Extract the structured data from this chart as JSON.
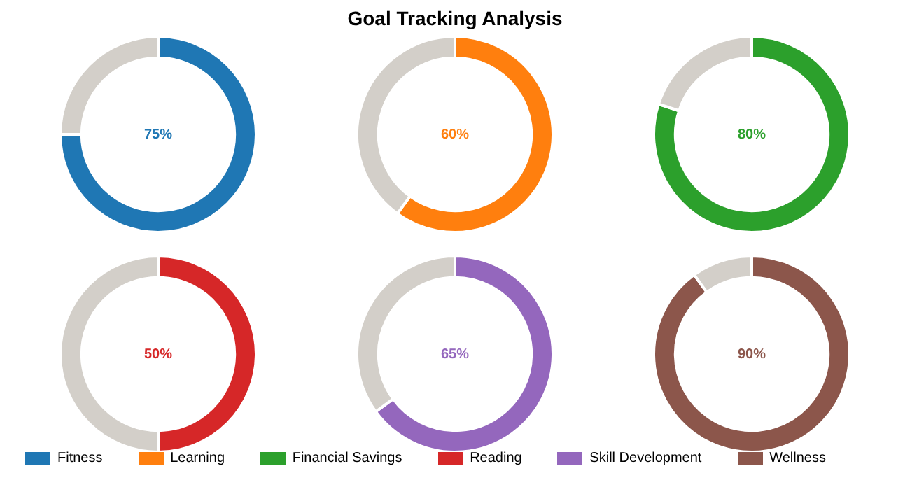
{
  "chart_data": [
    {
      "type": "donut",
      "categories": [
        "Fitness",
        null
      ],
      "values": [
        75,
        25
      ],
      "colors": [
        "#1f77b4",
        "#d3cfc9"
      ],
      "annotations": [
        "75%"
      ],
      "legend": "bottom"
    },
    {
      "type": "donut",
      "title": "Goal Tracking Analysis",
      "categories": [
        "Learning",
        null
      ],
      "values": [
        60,
        40
      ],
      "colors": [
        "#ff7f0e",
        "#d3cfc9"
      ],
      "annotations": [
        "60%"
      ],
      "legend": "bottom"
    },
    {
      "type": "donut",
      "categories": [
        "Financial Savings",
        null
      ],
      "values": [
        80,
        20
      ],
      "colors": [
        "#2ca02c",
        "#d3cfc9"
      ],
      "annotations": [
        "80%"
      ],
      "legend": "bottom"
    },
    {
      "type": "donut",
      "categories": [
        "Reading",
        null
      ],
      "values": [
        50,
        50
      ],
      "colors": [
        "#d62728",
        "#d3cfc9"
      ],
      "annotations": [
        "50%"
      ],
      "legend": "bottom"
    },
    {
      "type": "donut",
      "categories": [
        "Skill Development",
        null
      ],
      "values": [
        65,
        35
      ],
      "colors": [
        "#9467bd",
        "#d3cfc9"
      ],
      "annotations": [
        "65%"
      ],
      "legend": "bottom"
    },
    {
      "type": "donut",
      "categories": [
        "Wellness",
        null
      ],
      "values": [
        90,
        10
      ],
      "colors": [
        "#8c564b",
        "#d3cfc9"
      ],
      "annotations": [
        "90%"
      ],
      "legend": "bottom"
    }
  ]
}
